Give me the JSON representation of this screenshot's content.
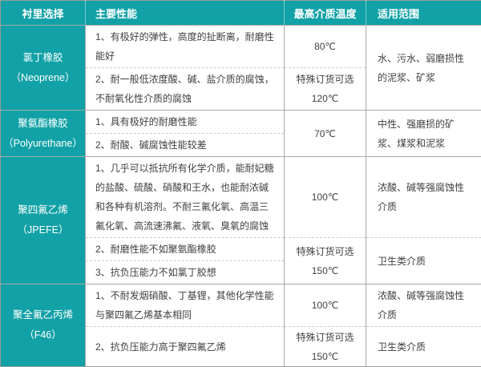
{
  "colors": {
    "teal": "#11a1a6",
    "border_solid": "#a9a9a9",
    "border_dashed": "#cdcdcd",
    "text": "#404040"
  },
  "header": {
    "col1": "衬里选择",
    "col2": "主要性能",
    "col3": "最高介质温度",
    "col4": "适用范围"
  },
  "groups": [
    {
      "name": "氯丁橡胶",
      "sub": "（Neoprene）",
      "range": "水、污水、弱磨损性的泥浆、矿浆",
      "rows": [
        {
          "perf": "1、有极好的弹性，高度的扯断离，耐磨性能好",
          "temp": "80℃"
        },
        {
          "perf": "2、耐一般低浓度酸、碱、盐介质的腐蚀，不耐氧化性介质的腐蚀",
          "temp": "特殊订货可选\n120℃"
        }
      ]
    },
    {
      "name": "聚氨酯橡胶",
      "sub": "（Polyurethane）",
      "temp": "70℃",
      "range": "中性、强磨损的矿浆、煤浆和泥浆",
      "rows": [
        {
          "perf": "1、具有极好的耐磨性能"
        },
        {
          "perf": "2、耐酸、碱腐蚀性能较差"
        }
      ]
    },
    {
      "name": "聚四氟乙烯",
      "sub": "（JPEFE）",
      "rows": [
        {
          "perf": "1、几乎可以抵抗所有化学介质，能耐妃糖的盐酸、硫酸、硝酸和王水，也能耐浓碱和各种有机溶剂。不耐三氟化氧、高温三氟化氧、高流速沸氟、液氧、臭氧的腐蚀",
          "temp": "100℃",
          "range": "浓酸、碱等强腐蚀性介质"
        },
        {
          "perf": "2、耐磨性能不如聚氨酯橡胶",
          "temp": "特殊订货可选\n150℃",
          "range": "卫生类介质"
        },
        {
          "perf": "3、抗负压能力不如氯丁胶想"
        }
      ]
    },
    {
      "name": "聚全氟乙丙烯",
      "sub": "（F46）",
      "rows": [
        {
          "perf": "1、不耐发烟硝酸、丁基锂，其他化学性能与聚四氟乙烯基本相同",
          "temp": "100℃",
          "range": "浓酸、碱等强腐蚀性介质"
        },
        {
          "perf": "2、抗负压能力高于聚四氟乙烯",
          "temp": "特殊订货可选\n150℃",
          "range": "卫生类介质"
        }
      ]
    }
  ]
}
